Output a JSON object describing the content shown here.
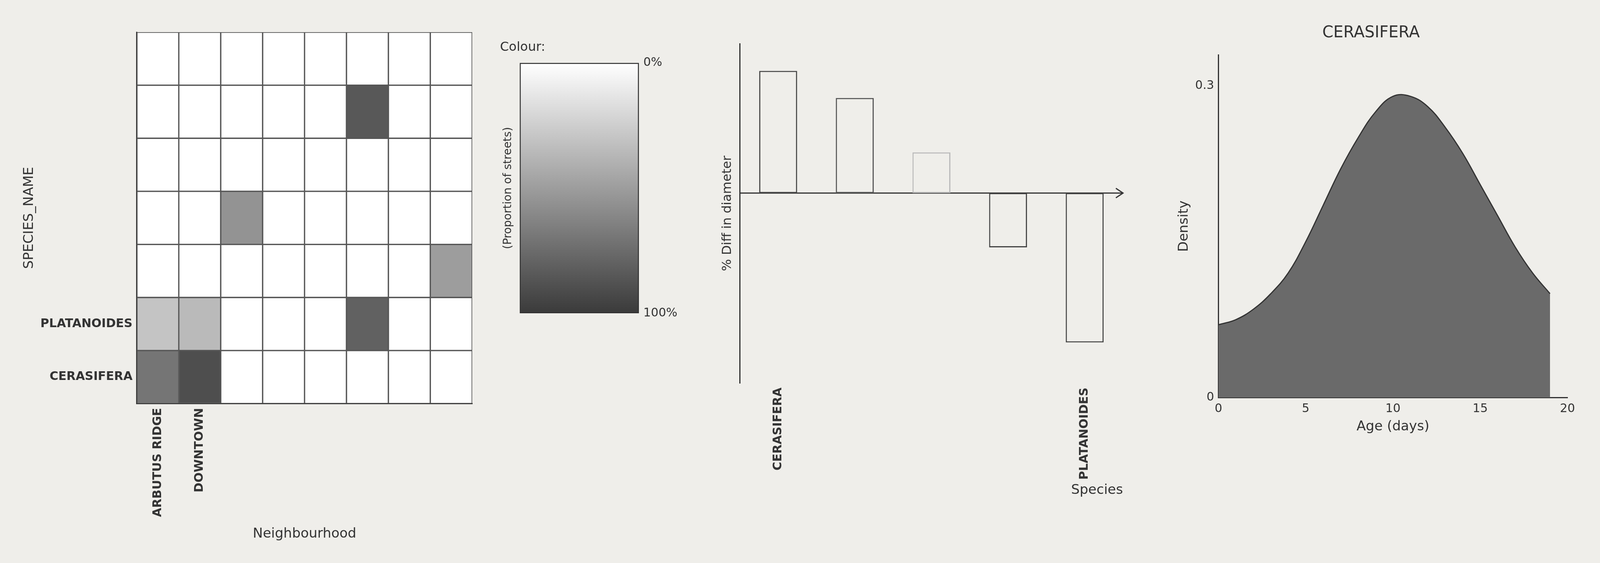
{
  "chart_data": [
    {
      "type": "heatmap",
      "x_label": "Neighbourhood",
      "y_label": "SPECIES_NAME",
      "x_categories": [
        "ARBUTUS RIDGE",
        "DOWNTOWN",
        null,
        null,
        null,
        null,
        null,
        null
      ],
      "y_categories": [
        "CERASIFERA",
        "PLATANOIDES",
        null,
        null,
        null,
        null,
        null
      ],
      "values": [
        [
          70,
          90,
          0,
          0,
          0,
          0,
          0,
          0
        ],
        [
          30,
          35,
          0,
          0,
          0,
          80,
          0,
          0
        ],
        [
          0,
          0,
          0,
          0,
          0,
          0,
          0,
          50
        ],
        [
          0,
          0,
          55,
          0,
          0,
          0,
          0,
          0
        ],
        [
          0,
          0,
          0,
          0,
          0,
          0,
          0,
          0
        ],
        [
          0,
          0,
          0,
          0,
          0,
          85,
          0,
          0
        ],
        [
          0,
          0,
          0,
          0,
          0,
          0,
          0,
          0
        ]
      ],
      "colorbar": {
        "title": "Colour:",
        "label": "(Proportion of streets)",
        "range": [
          0,
          100
        ],
        "ticks": [
          {
            "value": 0,
            "label": "0%"
          },
          {
            "value": 100,
            "label": "100%"
          }
        ]
      },
      "color": "#3a3a3a",
      "grid": true
    },
    {
      "type": "bar",
      "x_label": "Species",
      "y_label": "% Diff in diameter",
      "categories": [
        "CERASIFERA",
        null,
        null,
        null,
        "PLATANOIDES"
      ],
      "values": [
        45,
        35,
        15,
        -20,
        -55
      ],
      "colors": [
        "#444444",
        "#555555",
        "#bbbbbb",
        "#444444",
        "#444444"
      ],
      "ylim": [
        -70,
        55
      ],
      "tick_labels": "x",
      "grid": false
    },
    {
      "type": "line",
      "title": "CERASIFERA",
      "x_label": "Age (days)",
      "y_label": "Density",
      "x": [
        0,
        1,
        2,
        3,
        4,
        5,
        6,
        7,
        8,
        9,
        10,
        11,
        12,
        13,
        14,
        15,
        16,
        17,
        18,
        19
      ],
      "values": [
        0.07,
        0.075,
        0.085,
        0.1,
        0.12,
        0.15,
        0.185,
        0.22,
        0.25,
        0.275,
        0.29,
        0.29,
        0.28,
        0.26,
        0.235,
        0.205,
        0.175,
        0.145,
        0.12,
        0.1
      ],
      "color": "#6a6a6a",
      "marker": "none",
      "xlim": [
        0,
        20
      ],
      "xticks": [
        0,
        5,
        10,
        15,
        20
      ],
      "ylim": [
        0,
        0.33
      ],
      "yticks": [
        0,
        0.3
      ],
      "grid": false
    }
  ]
}
